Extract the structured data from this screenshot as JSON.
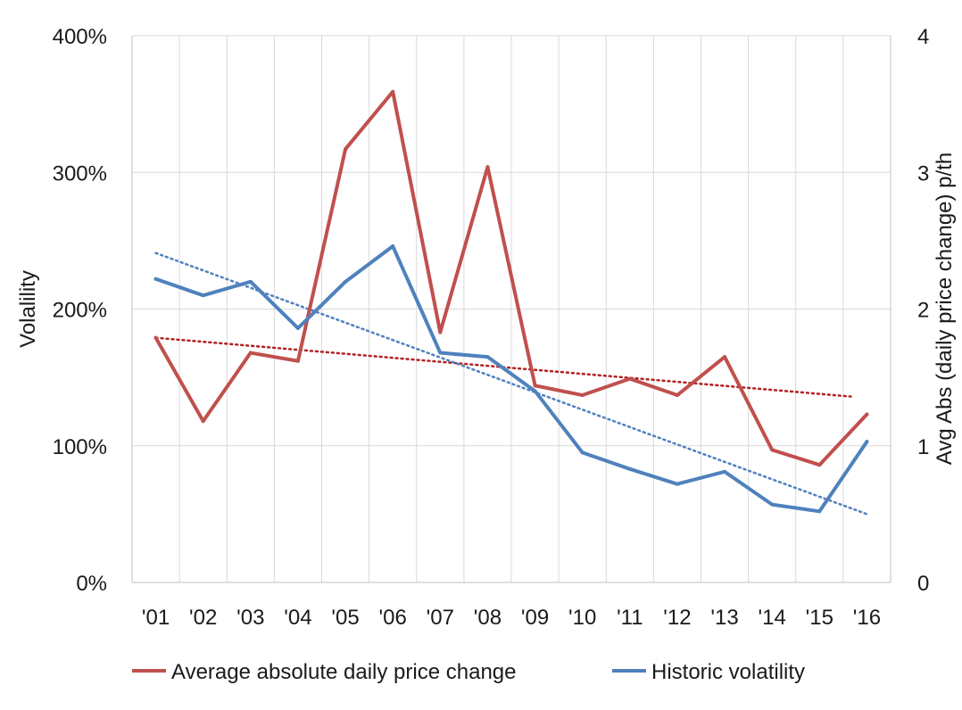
{
  "chart_data": {
    "type": "line",
    "x": [
      "'01",
      "'02",
      "'03",
      "'04",
      "'05",
      "'06",
      "'07",
      "'08",
      "'09",
      "'10",
      "'11",
      "'12",
      "'13",
      "'14",
      "'15",
      "'16"
    ],
    "y_left": {
      "label": "Volalility",
      "ticks": [
        "0%",
        "100%",
        "200%",
        "300%",
        "400%"
      ],
      "range": [
        0,
        400
      ]
    },
    "y_right": {
      "label": "Avg Abs (daily price  change) p/th",
      "ticks": [
        "0",
        "1",
        "2",
        "3",
        "4"
      ],
      "range": [
        0,
        4
      ]
    },
    "grid": true,
    "legend_position": "bottom",
    "series": [
      {
        "name": "Average absolute daily price change",
        "axis": "right",
        "color": "#c0504d",
        "values": [
          1.79,
          1.18,
          1.68,
          1.62,
          3.17,
          3.59,
          1.83,
          3.04,
          1.44,
          1.37,
          1.49,
          1.37,
          1.65,
          0.97,
          0.86,
          1.23
        ],
        "trend": [
          1.79,
          1.36
        ]
      },
      {
        "name": "Historic volatility",
        "axis": "left",
        "color": "#4f81bd",
        "values": [
          222,
          210,
          220,
          186,
          220,
          246,
          168,
          165,
          140,
          95,
          83,
          72,
          81,
          57,
          52,
          103
        ],
        "trend": [
          241,
          50
        ]
      }
    ]
  }
}
